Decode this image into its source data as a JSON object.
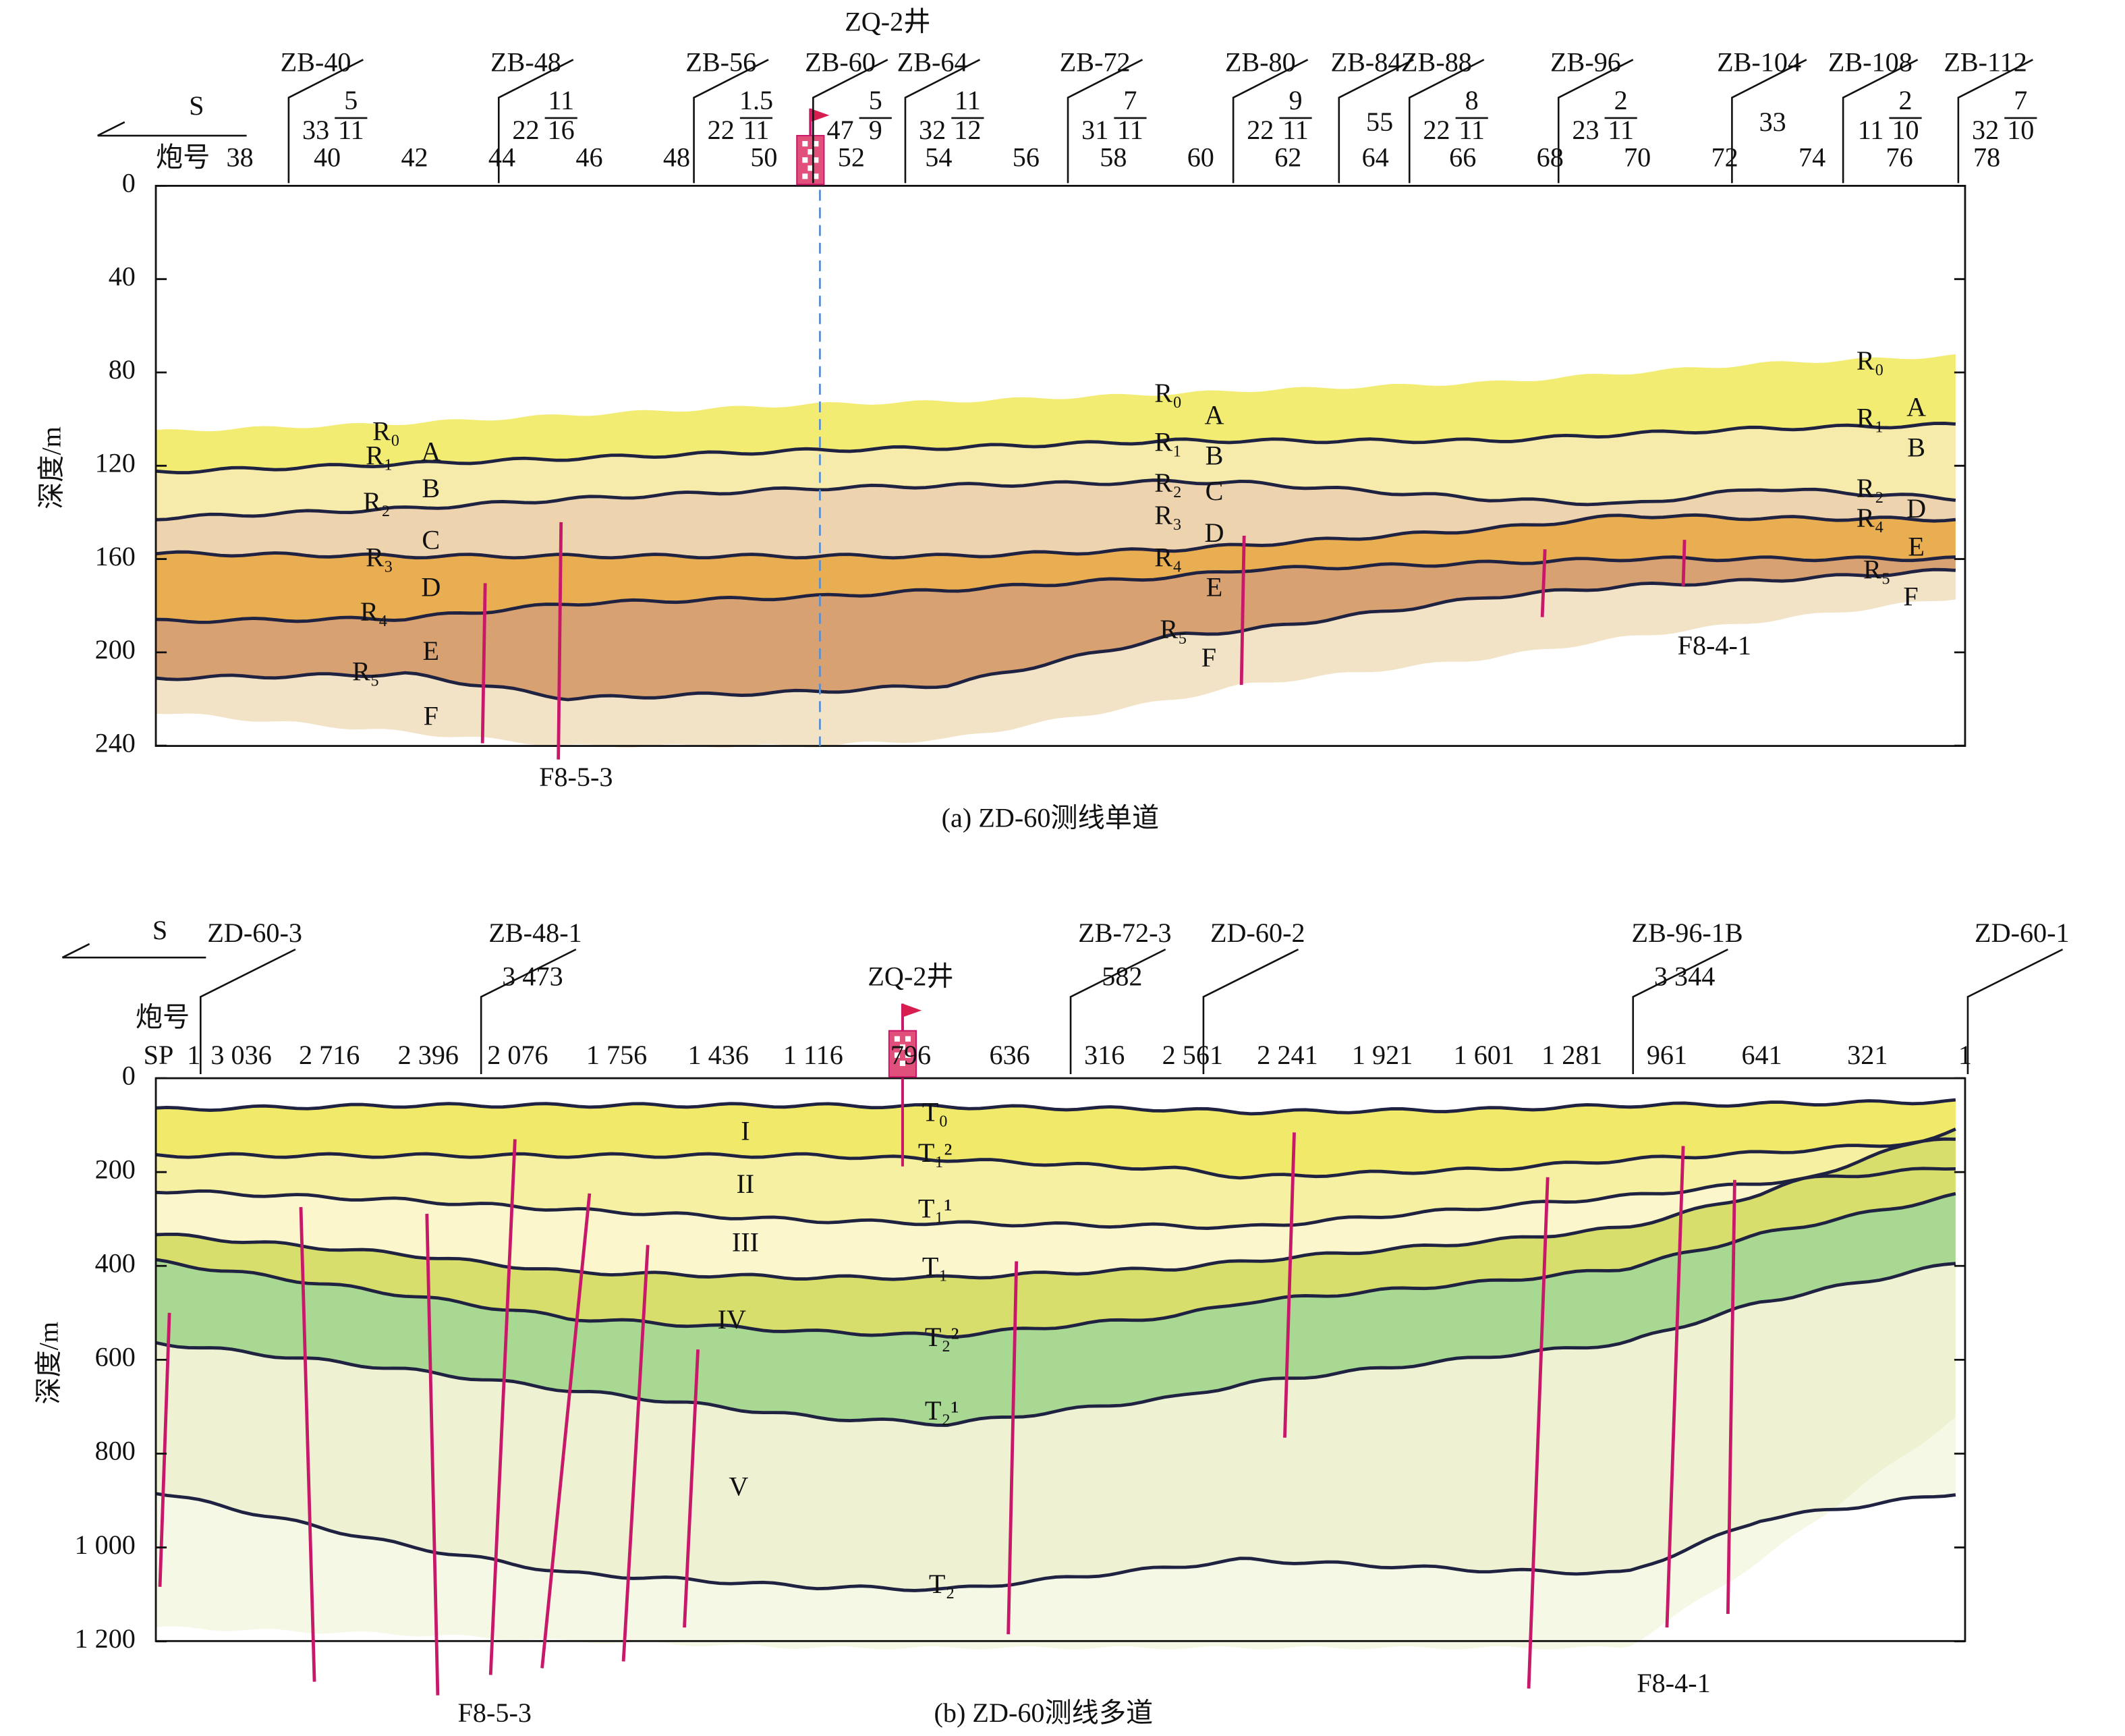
{
  "panel_a": {
    "direction": "S",
    "shot_label": "炮号",
    "shots": [
      "38",
      "40",
      "42",
      "44",
      "46",
      "48",
      "50",
      "52",
      "54",
      "56",
      "58",
      "60",
      "62",
      "64",
      "66",
      "68",
      "70",
      "72",
      "74",
      "76",
      "78"
    ],
    "well": "ZQ-2井",
    "stations": [
      {
        "name": "ZB-40",
        "depth": "33",
        "num": "5",
        "den": "11"
      },
      {
        "name": "ZB-48",
        "depth": "22",
        "num": "11",
        "den": "16"
      },
      {
        "name": "ZB-56",
        "depth": "22",
        "num": "1.5",
        "den": "11"
      },
      {
        "name": "ZB-60",
        "depth": "47",
        "num": "5",
        "den": "9"
      },
      {
        "name": "ZB-64",
        "depth": "32",
        "num": "11",
        "den": "12"
      },
      {
        "name": "ZB-72",
        "depth": "31",
        "num": "7",
        "den": "11"
      },
      {
        "name": "ZB-80",
        "depth": "22",
        "num": "9",
        "den": "11"
      },
      {
        "name": "ZB-84",
        "depth": "55"
      },
      {
        "name": "ZB-88",
        "depth": "22",
        "num": "8",
        "den": "11"
      },
      {
        "name": "ZB-96",
        "depth": "23",
        "num": "2",
        "den": "11"
      },
      {
        "name": "ZB-104",
        "depth": "33"
      },
      {
        "name": "ZB-108",
        "depth": "11",
        "num": "2",
        "den": "10"
      },
      {
        "name": "ZB-112",
        "depth": "32",
        "num": "7",
        "den": "10"
      }
    ],
    "y_axis_label": "深度/m",
    "yticks": [
      "0",
      "40",
      "80",
      "120",
      "160",
      "200",
      "240"
    ],
    "labels_left": [
      "R₀",
      "R₁",
      "R₂",
      "R₃",
      "R₄",
      "R₅",
      "A",
      "B",
      "C",
      "D",
      "E",
      "F"
    ],
    "labels_middle": [
      "R₀",
      "R₁",
      "R₂",
      "R₃",
      "R₄",
      "R₅",
      "A",
      "B",
      "C",
      "D",
      "E",
      "F"
    ],
    "labels_right": [
      "R₀",
      "R₁",
      "R₂",
      "R₄",
      "R₅",
      "A",
      "B",
      "D",
      "E",
      "F"
    ],
    "faults": [
      "F8-5-3",
      "F8-4-1"
    ],
    "caption": "(a) ZD-60测线单道"
  },
  "panel_b": {
    "direction": "S",
    "shot_label": "炮号",
    "sp_label": "SP",
    "shots": [
      "1",
      "3 036",
      "2 716",
      "2 396",
      "2 076",
      "1 756",
      "1 436",
      "1 116",
      "796",
      "636",
      "316",
      "2 561",
      "2 241",
      "1 921",
      "1 601",
      "1 281",
      "961",
      "641",
      "321",
      "1"
    ],
    "well": "ZQ-2井",
    "stations": [
      {
        "name": "ZD-60-3"
      },
      {
        "name": "ZB-48-1",
        "value": "3 473"
      },
      {
        "name": "ZB-72-3",
        "value": "582"
      },
      {
        "name": "ZD-60-2"
      },
      {
        "name": "ZB-96-1B",
        "value": "3 344"
      },
      {
        "name": "ZD-60-1"
      }
    ],
    "y_axis_label": "深度/m",
    "yticks": [
      "0",
      "200",
      "400",
      "600",
      "800",
      "1 000",
      "1 200"
    ],
    "layers": [
      "I",
      "II",
      "III",
      "IV",
      "V"
    ],
    "horizons": [
      "T₀",
      "T₁²",
      "T₁¹",
      "T₁",
      "T₂²",
      "T₂¹",
      "T₂"
    ],
    "faults": [
      "F8-5-3",
      "F8-4-1"
    ],
    "caption": "(b) ZD-60测线多道"
  }
}
